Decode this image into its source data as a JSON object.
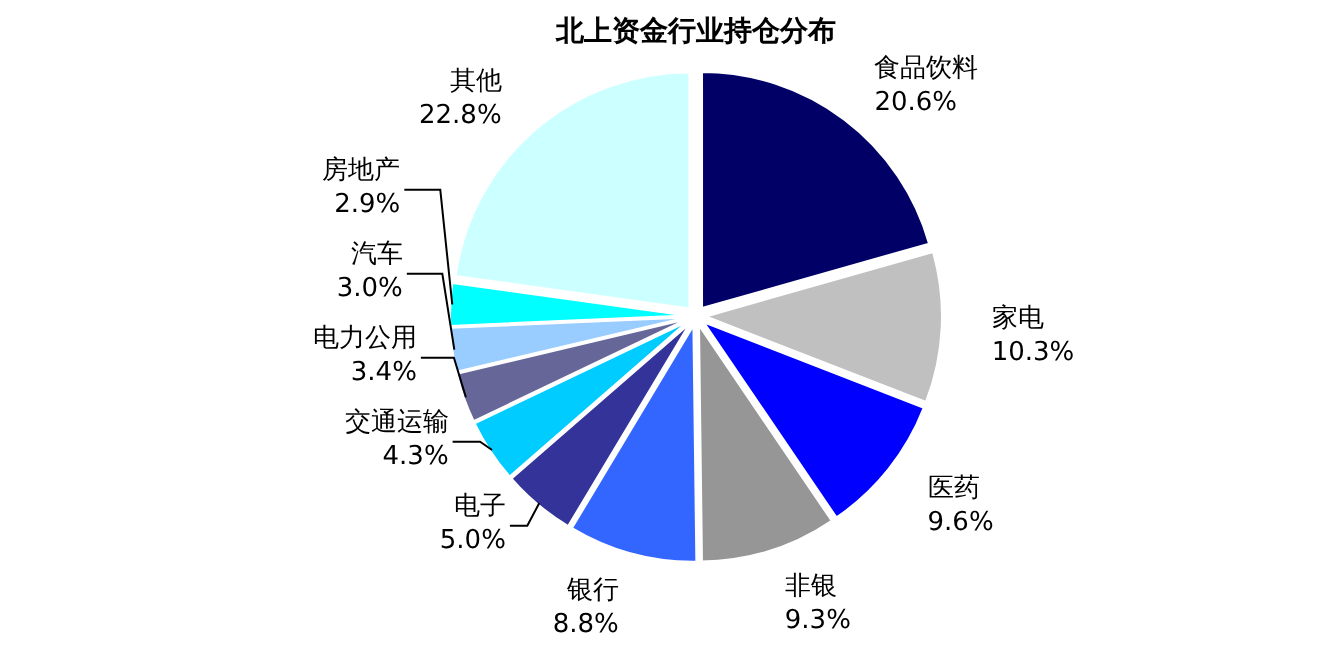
{
  "chart_data": {
    "type": "pie",
    "title": "北上资金行业持仓分布",
    "categories": [
      "食品饮料",
      "家电",
      "医药",
      "非银",
      "银行",
      "电子",
      "交通运输",
      "电力公用",
      "汽车",
      "房地产",
      "其他"
    ],
    "values": [
      20.6,
      10.3,
      9.6,
      9.3,
      8.8,
      5.0,
      4.3,
      3.4,
      3.0,
      2.9,
      22.8
    ],
    "colors": [
      "#000066",
      "#c0c0c0",
      "#0000ff",
      "#969696",
      "#3366ff",
      "#333399",
      "#00ccff",
      "#666699",
      "#99ccff",
      "#00ffff",
      "#ccffff"
    ],
    "value_labels": [
      "20.6%",
      "10.3%",
      "9.6%",
      "9.3%",
      "8.8%",
      "5.0%",
      "4.3%",
      "3.4%",
      "3.0%",
      "2.9%",
      "22.8%"
    ]
  }
}
